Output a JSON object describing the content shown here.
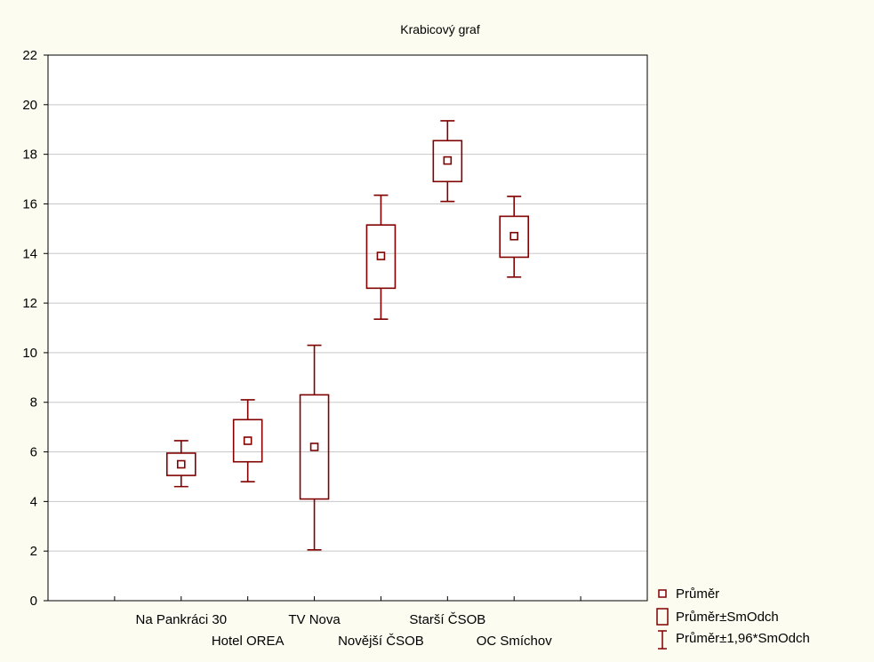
{
  "chart_data": {
    "type": "box",
    "title": "Krabicový graf",
    "xlabel": "",
    "ylabel": "",
    "ylim": [
      0,
      22
    ],
    "yticks": [
      0,
      2,
      4,
      6,
      8,
      10,
      12,
      14,
      16,
      18,
      20,
      22
    ],
    "grid": true,
    "legend_position": "bottom-right",
    "categories": [
      "Na Pankráci 30",
      "Hotel OREA",
      "TV Nova",
      "Novější ČSOB",
      "Starší ČSOB",
      "OC Smíchov"
    ],
    "series": [
      {
        "mean": [
          5.5,
          6.45,
          6.2,
          13.9,
          17.75,
          14.7
        ],
        "box_low": [
          5.05,
          5.6,
          4.1,
          12.6,
          16.9,
          13.85
        ],
        "box_high": [
          5.95,
          7.3,
          8.3,
          15.15,
          18.55,
          15.5
        ],
        "wh_low": [
          4.6,
          4.8,
          2.05,
          11.35,
          16.1,
          13.05
        ],
        "wh_high": [
          6.45,
          8.1,
          10.3,
          16.35,
          19.35,
          16.3
        ]
      }
    ],
    "legend": [
      {
        "key": "mean",
        "label": "Průměr"
      },
      {
        "key": "box",
        "label": "Průměr±SmOdch"
      },
      {
        "key": "whisker",
        "label": "Průměr±1,96*SmOdch"
      }
    ],
    "colors": {
      "series": "#800000",
      "grid": "#c8c8c8",
      "background": "#fcfcf0",
      "plot_bg": "#ffffff"
    }
  }
}
